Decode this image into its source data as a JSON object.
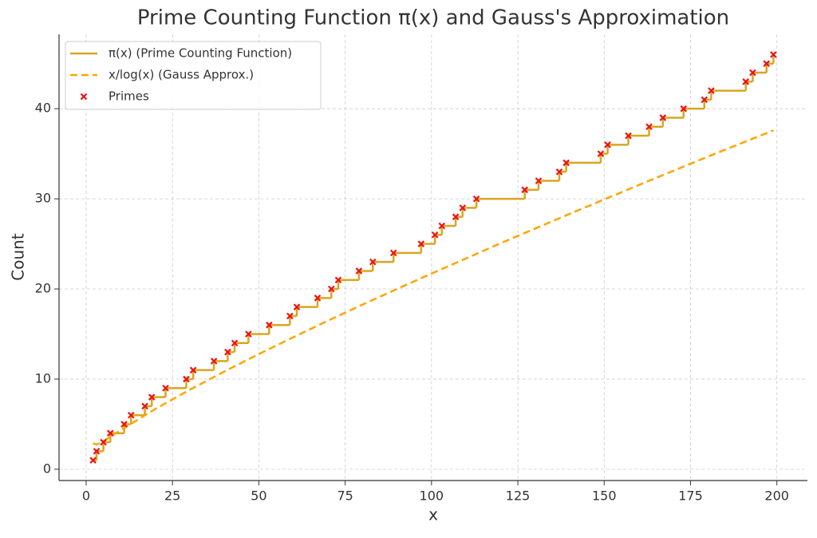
{
  "chart_data": {
    "type": "line",
    "title": "Prime Counting Function π(x) and Gauss's Approximation",
    "x_label": "x",
    "y_label": "Count",
    "xlim": [
      -7.85,
      208.85
    ],
    "ylim": [
      -1.25,
      48.25
    ],
    "xticks": [
      0,
      25,
      50,
      75,
      100,
      125,
      150,
      175,
      200
    ],
    "yticks": [
      0,
      10,
      20,
      30,
      40
    ],
    "grid": true,
    "legend": "upper left",
    "series": [
      {
        "name": "π(x) (Prime Counting Function)",
        "type": "step",
        "color": "#daa520",
        "x": [
          2,
          3,
          5,
          7,
          11,
          13,
          17,
          19,
          23,
          29,
          31,
          37,
          41,
          43,
          47,
          53,
          59,
          61,
          67,
          71,
          73,
          79,
          83,
          89,
          97,
          101,
          103,
          107,
          109,
          113,
          127,
          131,
          137,
          139,
          149,
          151,
          157,
          163,
          167,
          173,
          179,
          181,
          191,
          193,
          197,
          199
        ],
        "values": [
          1,
          2,
          3,
          4,
          5,
          6,
          7,
          8,
          9,
          10,
          11,
          12,
          13,
          14,
          15,
          16,
          17,
          18,
          19,
          20,
          21,
          22,
          23,
          24,
          25,
          26,
          27,
          28,
          29,
          30,
          31,
          32,
          33,
          34,
          35,
          36,
          37,
          38,
          39,
          40,
          41,
          42,
          43,
          44,
          45,
          46
        ]
      },
      {
        "name": "x/log(x) (Gauss Approx.)",
        "type": "dashed",
        "color": "#ffa500",
        "x": [
          2,
          3,
          5,
          10,
          20,
          30,
          40,
          50,
          60,
          70,
          80,
          90,
          100,
          120,
          140,
          160,
          180,
          199
        ],
        "values": [
          2.89,
          2.73,
          3.11,
          4.34,
          6.68,
          8.82,
          10.84,
          12.78,
          14.65,
          16.48,
          18.26,
          20.0,
          21.71,
          25.07,
          28.33,
          31.53,
          34.68,
          37.59
        ]
      },
      {
        "name": "Primes",
        "type": "scatter",
        "color": "#ee1111",
        "x": [
          2,
          3,
          5,
          7,
          11,
          13,
          17,
          19,
          23,
          29,
          31,
          37,
          41,
          43,
          47,
          53,
          59,
          61,
          67,
          71,
          73,
          79,
          83,
          89,
          97,
          101,
          103,
          107,
          109,
          113,
          127,
          131,
          137,
          139,
          149,
          151,
          157,
          163,
          167,
          173,
          179,
          181,
          191,
          193,
          197,
          199
        ],
        "values": [
          1,
          2,
          3,
          4,
          5,
          6,
          7,
          8,
          9,
          10,
          11,
          12,
          13,
          14,
          15,
          16,
          17,
          18,
          19,
          20,
          21,
          22,
          23,
          24,
          25,
          26,
          27,
          28,
          29,
          30,
          31,
          32,
          33,
          34,
          35,
          36,
          37,
          38,
          39,
          40,
          41,
          42,
          43,
          44,
          45,
          46
        ]
      }
    ]
  }
}
